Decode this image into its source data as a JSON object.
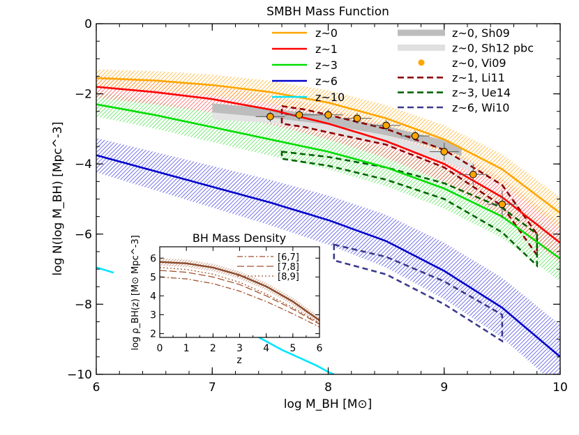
{
  "chart_data": [
    {
      "type": "line",
      "title": "SMBH Mass Function",
      "xlabel": "log M_BH [M⊙]",
      "ylabel": "log N(log M_BH) [Mpc^-3]",
      "xlim": [
        6,
        10
      ],
      "ylim": [
        -10,
        0
      ],
      "x_ticks": [
        "6",
        "7",
        "8",
        "9",
        "10"
      ],
      "y_ticks": [
        "0",
        "−2",
        "−4",
        "−6",
        "−8",
        "−10"
      ],
      "legend_left": [
        {
          "label": "z~0",
          "color": "#ffa500",
          "style": "solid"
        },
        {
          "label": "z~1",
          "color": "#ff0000",
          "style": "solid"
        },
        {
          "label": "z~3",
          "color": "#00dd00",
          "style": "solid"
        },
        {
          "label": "z~6",
          "color": "#0000cc",
          "style": "solid"
        },
        {
          "label": "z~10",
          "color": "#00e5ff",
          "style": "solid"
        }
      ],
      "legend_right": [
        {
          "label": "z~0, Sh09",
          "color": "#bdbdbd",
          "style": "band"
        },
        {
          "label": "z~0, Sh12 pbc",
          "color": "#e0e0e0",
          "style": "band"
        },
        {
          "label": "z~0, Vi09",
          "color": "#ffa500",
          "style": "point"
        },
        {
          "label": "z~1, Li11",
          "color": "#8b0000",
          "style": "dashed"
        },
        {
          "label": "z~3, Ue14",
          "color": "#006400",
          "style": "dashed"
        },
        {
          "label": "z~6, Wi10",
          "color": "#3a3a8c",
          "style": "dashed"
        }
      ],
      "series": [
        {
          "name": "z~0",
          "color": "#ffa500",
          "x": [
            6.0,
            6.5,
            7.0,
            7.5,
            8.0,
            8.5,
            9.0,
            9.5,
            10.0
          ],
          "y": [
            -1.55,
            -1.62,
            -1.75,
            -1.95,
            -2.25,
            -2.7,
            -3.3,
            -4.15,
            -5.4
          ],
          "spread": 0.35
        },
        {
          "name": "z~1",
          "color": "#ff0000",
          "x": [
            6.0,
            6.5,
            7.0,
            7.5,
            8.0,
            8.5,
            9.0,
            9.5,
            10.0
          ],
          "y": [
            -1.8,
            -1.95,
            -2.15,
            -2.45,
            -2.85,
            -3.35,
            -4.0,
            -4.95,
            -6.25
          ],
          "spread": 0.45
        },
        {
          "name": "z~3",
          "color": "#00dd00",
          "x": [
            6.0,
            6.5,
            7.0,
            7.5,
            8.0,
            8.5,
            9.0,
            9.5,
            10.0
          ],
          "y": [
            -2.3,
            -2.6,
            -2.95,
            -3.3,
            -3.65,
            -4.1,
            -4.7,
            -5.5,
            -6.7
          ],
          "spread": 0.5
        },
        {
          "name": "z~6",
          "color": "#0000cc",
          "x": [
            6.0,
            6.5,
            7.0,
            7.5,
            8.0,
            8.5,
            9.0,
            9.5,
            10.0
          ],
          "y": [
            -3.75,
            -4.2,
            -4.65,
            -5.1,
            -5.6,
            -6.2,
            -7.05,
            -8.1,
            -9.5
          ],
          "spread": 0.7
        },
        {
          "name": "z~10",
          "color": "#00e5ff",
          "x": [
            6.0,
            6.15
          ],
          "y": [
            -6.95,
            -7.1
          ],
          "spread": 0
        },
        {
          "name": "z~10 (tail)",
          "color": "#00e5ff",
          "x": [
            7.35,
            7.6,
            7.9,
            8.0,
            8.05
          ],
          "y": [
            -8.85,
            -9.3,
            -9.75,
            -9.93,
            -10.0
          ],
          "spread": 0
        }
      ],
      "sh09_band": {
        "x": [
          7.0,
          7.5,
          8.0,
          8.5,
          9.0,
          9.15
        ],
        "y": [
          -2.4,
          -2.55,
          -2.75,
          -3.05,
          -3.45,
          -3.65
        ],
        "halfwidth": 0.13
      },
      "sh12_band": {
        "x": [
          7.0,
          7.5,
          8.0,
          8.5,
          9.0,
          9.25
        ],
        "y": [
          -2.6,
          -2.7,
          -2.95,
          -3.3,
          -3.8,
          -4.1
        ],
        "halfwidth": 0.13
      },
      "vi09_points": {
        "x": [
          7.5,
          7.75,
          8.0,
          8.25,
          8.5,
          8.75,
          9.0,
          9.25,
          9.5
        ],
        "y": [
          -2.65,
          -2.6,
          -2.6,
          -2.7,
          -2.9,
          -3.2,
          -3.65,
          -4.3,
          -5.15
        ],
        "xerr": 0.125,
        "yerr": [
          0.15,
          0.15,
          0.15,
          0.15,
          0.15,
          0.15,
          0.25,
          0.3,
          0.4
        ]
      },
      "li11_region": {
        "upper": {
          "x": [
            7.6,
            7.8,
            8.0,
            8.5,
            9.0,
            9.5,
            9.8
          ],
          "y": [
            -2.35,
            -2.45,
            -2.6,
            -3.0,
            -3.6,
            -4.6,
            -6.0
          ]
        },
        "lower": {
          "x": [
            7.6,
            7.8,
            8.0,
            8.5,
            9.0,
            9.5,
            9.8
          ],
          "y": [
            -2.85,
            -2.95,
            -3.1,
            -3.45,
            -4.1,
            -5.2,
            -6.6
          ]
        }
      },
      "ue14_region": {
        "upper": {
          "x": [
            7.6,
            8.0,
            8.5,
            9.0,
            9.5,
            9.8
          ],
          "y": [
            -3.65,
            -3.8,
            -4.1,
            -4.55,
            -5.25,
            -6.0
          ]
        },
        "lower": {
          "x": [
            7.6,
            8.0,
            8.5,
            9.0,
            9.5,
            9.8
          ],
          "y": [
            -3.85,
            -4.05,
            -4.45,
            -5.0,
            -5.95,
            -6.9
          ]
        }
      },
      "wi10_region": {
        "upper": {
          "x": [
            8.05,
            8.5,
            9.0,
            9.5
          ],
          "y": [
            -6.3,
            -6.65,
            -7.35,
            -8.3
          ]
        },
        "lower": {
          "x": [
            8.05,
            8.5,
            9.0,
            9.5
          ],
          "y": [
            -6.75,
            -7.15,
            -8.0,
            -9.05
          ]
        }
      }
    },
    {
      "type": "line",
      "title": "BH Mass Density",
      "xlabel": "z",
      "ylabel": "log ρ_BH(z) [M⊙ Mpc^-3]",
      "xlim": [
        0,
        6
      ],
      "ylim": [
        1.8,
        6.6
      ],
      "x_ticks": [
        "0",
        "1",
        "2",
        "3",
        "4",
        "5",
        "6"
      ],
      "y_ticks": [
        "2",
        "3",
        "4",
        "5",
        "6"
      ],
      "legend": [
        {
          "label": "[6,7]",
          "style": "dashdot"
        },
        {
          "label": "[7,8]",
          "style": "longdash"
        },
        {
          "label": "[8,9]",
          "style": "dotted"
        }
      ],
      "series": [
        {
          "name": "total",
          "x": [
            0,
            1,
            2,
            3,
            4,
            5,
            6
          ],
          "y": [
            5.8,
            5.72,
            5.5,
            5.1,
            4.5,
            3.7,
            2.7
          ],
          "spread": 0.2
        },
        {
          "name": "[6,7]",
          "x": [
            0,
            1,
            2,
            3,
            4,
            5,
            6
          ],
          "y": [
            5.0,
            4.9,
            4.65,
            4.25,
            3.7,
            3.05,
            2.35
          ]
        },
        {
          "name": "[7,8]",
          "x": [
            0,
            1,
            2,
            3,
            4,
            5,
            6
          ],
          "y": [
            5.35,
            5.25,
            5.0,
            4.6,
            4.0,
            3.3,
            2.5
          ]
        },
        {
          "name": "[8,9]",
          "x": [
            0,
            1,
            2,
            3,
            4,
            5,
            6
          ],
          "y": [
            5.5,
            5.4,
            5.15,
            4.72,
            4.1,
            3.38,
            2.55
          ]
        }
      ]
    }
  ]
}
